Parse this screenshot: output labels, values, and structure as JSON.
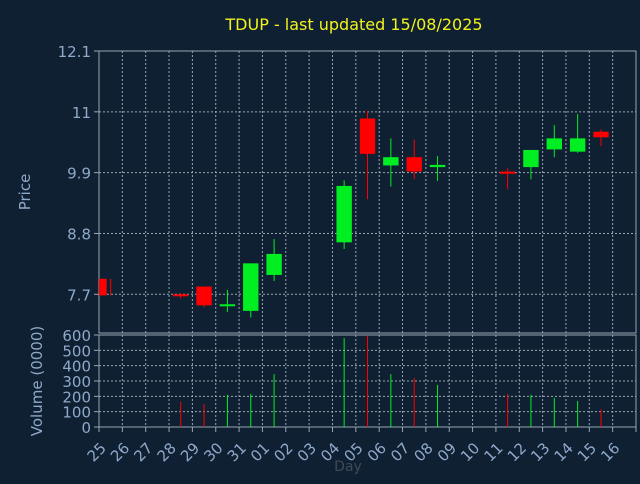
{
  "chart_data": {
    "type": "candlestick",
    "title": "TDUP - last updated 15/08/2025",
    "xlabel": "Day",
    "ylabel_price": "Price",
    "ylabel_volume": "Volume (0000)",
    "price_ticks": [
      "12.1",
      "11",
      "9.9",
      "8.8",
      "7.7"
    ],
    "price_tick_values": [
      12.1,
      11,
      9.9,
      8.8,
      7.7
    ],
    "price_range": [
      7.0,
      12.1
    ],
    "volume_ticks": [
      "600",
      "500",
      "400",
      "300",
      "200",
      "100",
      "0"
    ],
    "volume_tick_values": [
      600,
      500,
      400,
      300,
      200,
      100,
      0
    ],
    "volume_range": [
      0,
      600
    ],
    "x_labels": [
      "25",
      "26",
      "27",
      "28",
      "29",
      "30",
      "31",
      "01",
      "02",
      "03",
      "04",
      "05",
      "06",
      "07",
      "08",
      "09",
      "10",
      "11",
      "12",
      "13",
      "14",
      "15",
      "16"
    ],
    "grid": true,
    "colors": {
      "background": "#0f2033",
      "title": "#f2f21c",
      "axis_text": "#8fa9c8",
      "grid": "#9aa6b2",
      "up": "#00ee22",
      "down": "#ff0000"
    },
    "candles": [
      {
        "day": "25",
        "open": 7.98,
        "high": 7.98,
        "low": 7.68,
        "close": 7.68
      },
      {
        "day": "28",
        "open": 7.7,
        "high": 7.72,
        "low": 7.62,
        "close": 7.68
      },
      {
        "day": "29",
        "open": 7.84,
        "high": 7.84,
        "low": 7.46,
        "close": 7.5
      },
      {
        "day": "30",
        "open": 7.5,
        "high": 7.78,
        "low": 7.38,
        "close": 7.52
      },
      {
        "day": "31",
        "open": 7.4,
        "high": 8.24,
        "low": 7.28,
        "close": 8.26
      },
      {
        "day": "01",
        "open": 8.05,
        "high": 8.7,
        "low": 7.94,
        "close": 8.43
      },
      {
        "day": "04",
        "open": 8.64,
        "high": 9.76,
        "low": 8.52,
        "close": 9.66
      },
      {
        "day": "05",
        "open": 10.88,
        "high": 11.02,
        "low": 9.42,
        "close": 10.24
      },
      {
        "day": "06",
        "open": 10.03,
        "high": 10.52,
        "low": 9.65,
        "close": 10.18
      },
      {
        "day": "07",
        "open": 10.18,
        "high": 10.5,
        "low": 9.78,
        "close": 9.92
      },
      {
        "day": "08",
        "open": 10.0,
        "high": 10.2,
        "low": 9.75,
        "close": 10.04
      },
      {
        "day": "11",
        "open": 9.92,
        "high": 9.98,
        "low": 9.6,
        "close": 9.88
      },
      {
        "day": "12",
        "open": 10.0,
        "high": 10.31,
        "low": 9.78,
        "close": 10.31
      },
      {
        "day": "13",
        "open": 10.32,
        "high": 10.76,
        "low": 10.18,
        "close": 10.52
      },
      {
        "day": "14",
        "open": 10.28,
        "high": 10.96,
        "low": 10.26,
        "close": 10.52
      },
      {
        "day": "15",
        "open": 10.64,
        "high": 10.68,
        "low": 10.38,
        "close": 10.54
      }
    ],
    "volume": [
      {
        "day": "28",
        "value": 165,
        "dir": "down"
      },
      {
        "day": "29",
        "value": 150,
        "dir": "down"
      },
      {
        "day": "30",
        "value": 210,
        "dir": "up"
      },
      {
        "day": "31",
        "value": 215,
        "dir": "up"
      },
      {
        "day": "01",
        "value": 345,
        "dir": "up"
      },
      {
        "day": "04",
        "value": 580,
        "dir": "up"
      },
      {
        "day": "05",
        "value": 595,
        "dir": "down"
      },
      {
        "day": "06",
        "value": 345,
        "dir": "up"
      },
      {
        "day": "07",
        "value": 320,
        "dir": "down"
      },
      {
        "day": "08",
        "value": 275,
        "dir": "up"
      },
      {
        "day": "11",
        "value": 215,
        "dir": "down"
      },
      {
        "day": "12",
        "value": 210,
        "dir": "up"
      },
      {
        "day": "13",
        "value": 190,
        "dir": "up"
      },
      {
        "day": "14",
        "value": 170,
        "dir": "up"
      },
      {
        "day": "15",
        "value": 115,
        "dir": "down"
      }
    ]
  }
}
